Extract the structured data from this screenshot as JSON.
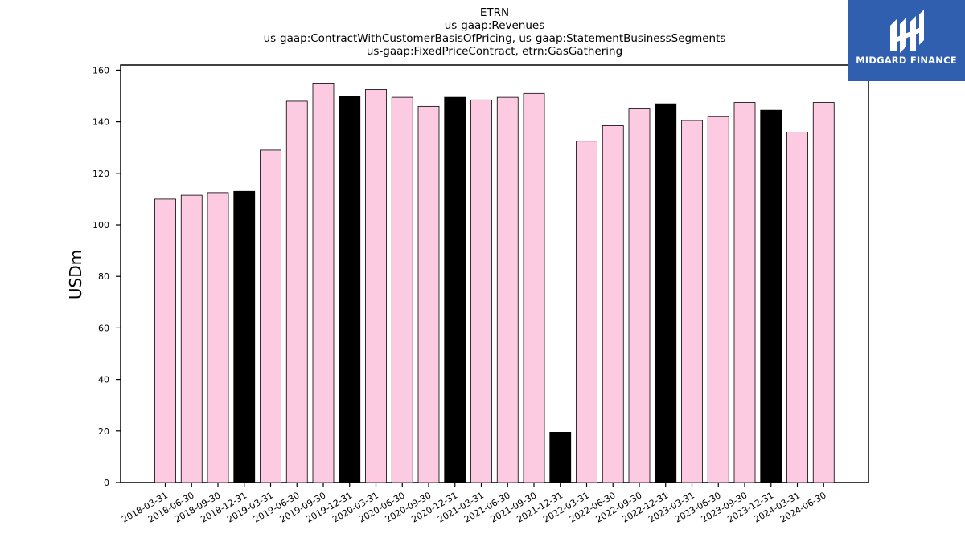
{
  "chart_data": {
    "type": "bar",
    "title_lines": [
      "ETRN",
      "us-gaap:Revenues",
      "us-gaap:ContractWithCustomerBasisOfPricing, us-gaap:StatementBusinessSegments",
      "us-gaap:FixedPriceContract, etrn:GasGathering"
    ],
    "ylabel": "USDm",
    "xlabel": "",
    "ylim": [
      0,
      162
    ],
    "yticks": [
      0,
      20,
      40,
      60,
      80,
      100,
      120,
      140,
      160
    ],
    "categories": [
      "2018-03-31",
      "2018-06-30",
      "2018-09-30",
      "2018-12-31",
      "2019-03-31",
      "2019-06-30",
      "2019-09-30",
      "2019-12-31",
      "2020-03-31",
      "2020-06-30",
      "2020-09-30",
      "2020-12-31",
      "2021-03-31",
      "2021-06-30",
      "2021-09-30",
      "2021-12-31",
      "2022-03-31",
      "2022-06-30",
      "2022-09-30",
      "2022-12-31",
      "2023-03-31",
      "2023-06-30",
      "2023-09-30",
      "2023-12-31",
      "2024-03-31",
      "2024-06-30"
    ],
    "values": [
      110,
      111.5,
      112.5,
      113,
      129,
      148,
      155,
      150,
      152.5,
      149.5,
      146,
      149.5,
      148.5,
      149.5,
      151,
      19.5,
      132.5,
      138.5,
      145,
      147,
      140.5,
      142,
      147.5,
      144.5,
      136,
      147.5
    ],
    "highlight_categories": [
      "2018-12-31",
      "2019-12-31",
      "2020-12-31",
      "2021-12-31",
      "2022-12-31",
      "2023-12-31"
    ],
    "colors": {
      "bar": "#fccbe2",
      "highlight_bar": "#000000",
      "edge": "#000000"
    },
    "grid": false
  },
  "logo": {
    "text": "MIDGARD FINANCE",
    "background": "#2f5fae"
  }
}
